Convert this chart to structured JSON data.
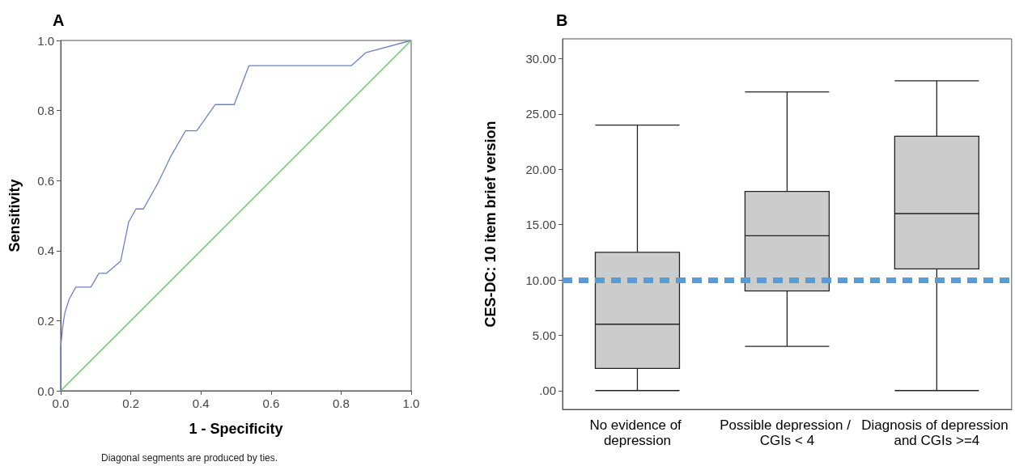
{
  "chart_data": [
    {
      "type": "line",
      "title": "A",
      "xlabel": "1 - Specificity",
      "ylabel": "Sensitivity",
      "xlim": [
        0,
        1
      ],
      "ylim": [
        0,
        1
      ],
      "xticks": [
        {
          "value": 0,
          "label": "0.0"
        },
        {
          "value": 0.2,
          "label": "0.2"
        },
        {
          "value": 0.4,
          "label": "0.4"
        },
        {
          "value": 0.6,
          "label": "0.6"
        },
        {
          "value": 0.8,
          "label": "0.8"
        },
        {
          "value": 1,
          "label": "1.0"
        }
      ],
      "yticks": [
        {
          "value": 0,
          "label": "0.0"
        },
        {
          "value": 0.2,
          "label": "0.2"
        },
        {
          "value": 0.4,
          "label": "0.4"
        },
        {
          "value": 0.6,
          "label": "0.6"
        },
        {
          "value": 0.8,
          "label": "0.8"
        },
        {
          "value": 1,
          "label": "1.0"
        }
      ],
      "series": [
        {
          "color": "#6f80c8",
          "x": [
            0,
            0,
            0.006,
            0.012,
            0.024,
            0.043,
            0.086,
            0.109,
            0.13,
            0.171,
            0.194,
            0.215,
            0.236,
            0.278,
            0.313,
            0.356,
            0.388,
            0.441,
            0.495,
            0.537,
            0.829,
            0.87,
            1
          ],
          "values": [
            0,
            0.126,
            0.184,
            0.223,
            0.261,
            0.296,
            0.296,
            0.335,
            0.335,
            0.37,
            0.482,
            0.519,
            0.519,
            0.594,
            0.667,
            0.742,
            0.742,
            0.817,
            0.817,
            0.928,
            0.928,
            0.965,
            1
          ]
        },
        {
          "color": "#5ec85e",
          "x": [
            0,
            1
          ],
          "values": [
            0,
            1
          ]
        }
      ],
      "annotations": [
        "Diagonal segments are produced by ties."
      ]
    },
    {
      "type": "box",
      "title": "B",
      "ylabel": "CES-DC: 10 item brief version",
      "categories": [
        "No evidence of depression",
        "Possible depression / CGIs < 4",
        "Diagnosis of depression and CGIs >=4"
      ],
      "color": "#cccccc",
      "boxes": [
        {
          "low": 0,
          "q1": 2,
          "median": 6,
          "q3": 12.5,
          "high": 24
        },
        {
          "low": 4,
          "q1": 9,
          "median": 14,
          "q3": 18,
          "high": 27
        },
        {
          "low": 0,
          "q1": 11,
          "median": 16,
          "q3": 23,
          "high": 28
        }
      ],
      "ylim": [
        -1.7,
        31.8
      ],
      "yticks": [
        {
          "value": 0,
          "label": ".00"
        },
        {
          "value": 5,
          "label": "5.00"
        },
        {
          "value": 10,
          "label": "10.00"
        },
        {
          "value": 15,
          "label": "15.00"
        },
        {
          "value": 20,
          "label": "20.00"
        },
        {
          "value": 25,
          "label": "25.00"
        },
        {
          "value": 30,
          "label": "30.00"
        }
      ],
      "ref_lines": [
        {
          "axis": "y",
          "value": 10,
          "color": "#5b9bd5",
          "line_style": "dashed"
        }
      ]
    }
  ]
}
